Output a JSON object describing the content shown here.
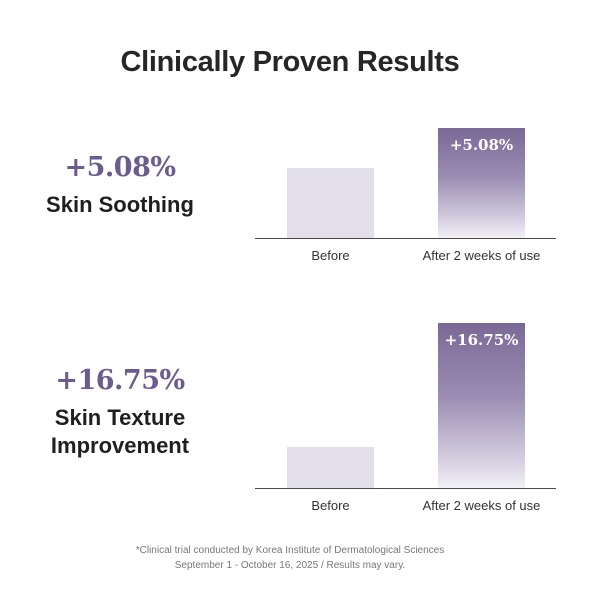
{
  "title": "Clinically Proven Results",
  "colors": {
    "accent": "#6b5b8e",
    "before_bar": "#e2dfeb",
    "after_bar_top": "#7a6996",
    "after_bar_bottom": "#f4f1f7"
  },
  "metrics": [
    {
      "value": "+5.08%",
      "label_lines": [
        "Skin Soothing"
      ]
    },
    {
      "value": "+16.75%",
      "label_lines": [
        "Skin Texture",
        "Improvement"
      ]
    }
  ],
  "chart_data": [
    {
      "type": "bar",
      "categories": [
        "Before",
        "After 2 weeks of use"
      ],
      "values": [
        100,
        105.08
      ],
      "data_labels": [
        "",
        "+5.08%"
      ],
      "title": "",
      "xlabel": "",
      "ylabel": "",
      "axis_visible": false,
      "grid": false
    },
    {
      "type": "bar",
      "categories": [
        "Before",
        "After 2 weeks of use"
      ],
      "values": [
        100,
        116.75
      ],
      "data_labels": [
        "",
        "+16.75%"
      ],
      "title": "",
      "xlabel": "",
      "ylabel": "",
      "axis_visible": false,
      "grid": false
    }
  ],
  "footnote": {
    "line1": "*Clinical trial conducted by Korea Institute of Dermatological Sciences",
    "line2": "September 1 - October 16, 2025 / Results may vary."
  }
}
